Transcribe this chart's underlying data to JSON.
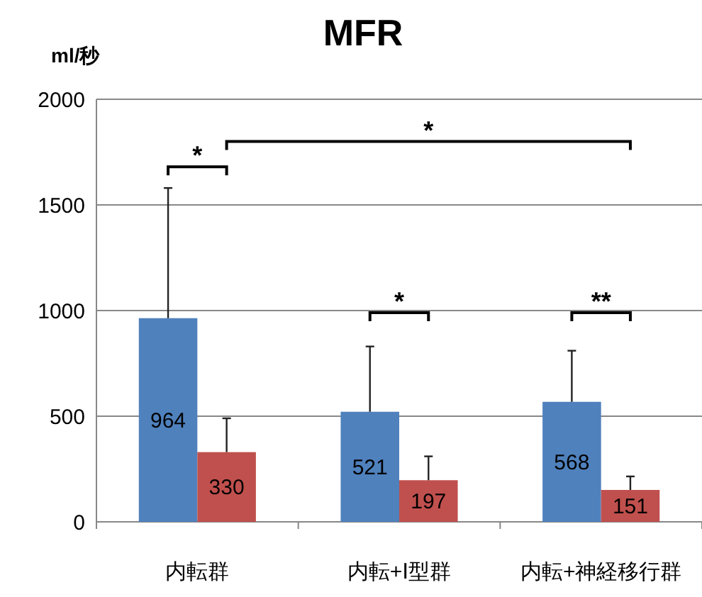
{
  "chart_data": {
    "type": "bar",
    "title": "MFR",
    "ylabel": "ml/秒",
    "categories": [
      "内転群",
      "内転+Ⅰ型群",
      "内転+神経移行群"
    ],
    "series": [
      {
        "color": "#4f81bd",
        "values": [
          964,
          521,
          568
        ],
        "errors": [
          [
            964,
            1580
          ],
          [
            521,
            830
          ],
          [
            568,
            810
          ]
        ]
      },
      {
        "color": "#c0504d",
        "values": [
          330,
          197,
          151
        ],
        "errors": [
          [
            330,
            490
          ],
          [
            197,
            310
          ],
          [
            151,
            215
          ]
        ]
      }
    ],
    "ylim": [
      0,
      2000
    ],
    "yticks": [
      0,
      500,
      1000,
      1500,
      2000
    ],
    "grid": "y",
    "data_labels": true,
    "annotations": [
      "*",
      "*",
      "*",
      "**"
    ]
  }
}
